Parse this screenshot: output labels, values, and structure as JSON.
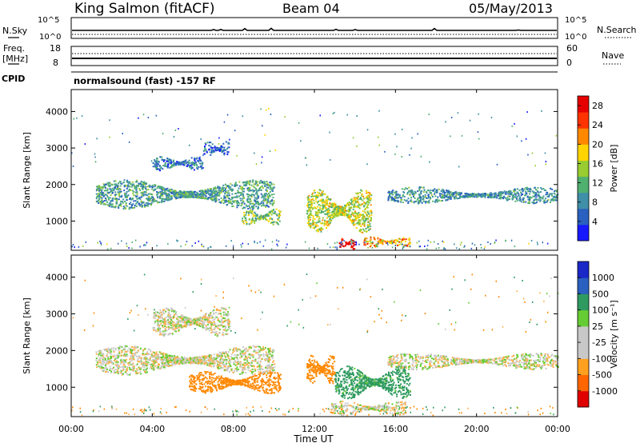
{
  "header": {
    "station": "King Salmon (fitACF)",
    "beam": "Beam 04",
    "date": "05/May/2013"
  },
  "noise_panel": {
    "left_label": "N.Sky",
    "left_ticks": [
      "10^5",
      "10^0"
    ],
    "right_label": "N.Search",
    "right_ticks": [
      "10^5",
      "10^0"
    ]
  },
  "freq_panel": {
    "left_label_line1": "Freq.",
    "left_label_line2": "[MHz]",
    "left_ticks": [
      "18",
      "8"
    ],
    "right_label": "Nave",
    "right_ticks": [
      "60",
      "0"
    ]
  },
  "cpid": {
    "label": "CPID",
    "value": "normalsound (fast) -157 RF"
  },
  "time_axis": {
    "label": "Time UT",
    "ticks": [
      "00:00",
      "04:00",
      "08:00",
      "12:00",
      "16:00",
      "20:00",
      "00:00"
    ]
  },
  "chart_data": [
    {
      "type": "heatmap",
      "quantity": "power",
      "xlabel": "Time UT",
      "ylabel": "Slant Range [km]",
      "xlim": [
        0,
        24
      ],
      "ylim": [
        200,
        4600
      ],
      "y_ticks": [
        "1000",
        "2000",
        "3000",
        "4000"
      ],
      "colorbar": {
        "label": "Power [dB]",
        "ticks": [
          "4",
          "8",
          "12",
          "16",
          "20",
          "24",
          "28"
        ],
        "range": [
          0,
          30
        ],
        "colors": [
          "#1818ff",
          "#2a60c0",
          "#3f8fa8",
          "#4fb070",
          "#98cc30",
          "#ffd400",
          "#ff8800",
          "#ff3300",
          "#e60000"
        ]
      },
      "echo_regions": [
        {
          "t_start": 1.2,
          "t_end": 10.0,
          "range_start": 1350,
          "range_end": 2150,
          "level": 10
        },
        {
          "t_start": 4.0,
          "t_end": 6.5,
          "range_start": 2400,
          "range_end": 2800,
          "level": 7
        },
        {
          "t_start": 6.5,
          "t_end": 7.8,
          "range_start": 2800,
          "range_end": 3200,
          "level": 6
        },
        {
          "t_start": 8.4,
          "t_end": 10.3,
          "range_start": 900,
          "range_end": 1350,
          "level": 14
        },
        {
          "t_start": 11.6,
          "t_end": 14.8,
          "range_start": 700,
          "range_end": 1900,
          "level": 16
        },
        {
          "t_start": 13.2,
          "t_end": 14.0,
          "range_start": 250,
          "range_end": 550,
          "level": 28
        },
        {
          "t_start": 14.4,
          "t_end": 16.7,
          "range_start": 300,
          "range_end": 600,
          "level": 20
        },
        {
          "t_start": 15.6,
          "t_end": 24.0,
          "range_start": 1500,
          "range_end": 1950,
          "level": 9
        }
      ]
    },
    {
      "type": "heatmap",
      "quantity": "velocity",
      "xlabel": "Time UT",
      "ylabel": "Slant Range [km]",
      "xlim": [
        0,
        24
      ],
      "ylim": [
        200,
        4600
      ],
      "y_ticks": [
        "1000",
        "2000",
        "3000",
        "4000"
      ],
      "colorbar": {
        "label": "Velocity [m s⁻¹]",
        "ticks": [
          "1000",
          "500",
          "100",
          "25",
          "-25",
          "-100",
          "-500",
          "-1000"
        ],
        "colors": [
          "#1a28c8",
          "#2a60c0",
          "#2f9a60",
          "#66cc33",
          "#c8c8c8",
          "#c8c8c8",
          "#ffa020",
          "#ff6600",
          "#e00000"
        ]
      },
      "echo_regions": [
        {
          "t_start": 1.2,
          "t_end": 10.0,
          "range_start": 1350,
          "range_end": 2150,
          "velocity": 0
        },
        {
          "t_start": 4.0,
          "t_end": 7.8,
          "range_start": 2400,
          "range_end": 3200,
          "velocity": 0
        },
        {
          "t_start": 5.8,
          "t_end": 10.3,
          "range_start": 850,
          "range_end": 1450,
          "velocity": -300
        },
        {
          "t_start": 11.6,
          "t_end": 13.0,
          "range_start": 1100,
          "range_end": 1900,
          "velocity": -400
        },
        {
          "t_start": 13.0,
          "t_end": 16.7,
          "range_start": 700,
          "range_end": 1600,
          "velocity": 150
        },
        {
          "t_start": 12.8,
          "t_end": 16.5,
          "range_start": 250,
          "range_end": 650,
          "velocity": 0
        },
        {
          "t_start": 15.6,
          "t_end": 24.0,
          "range_start": 1500,
          "range_end": 1950,
          "velocity": 0
        }
      ]
    }
  ]
}
